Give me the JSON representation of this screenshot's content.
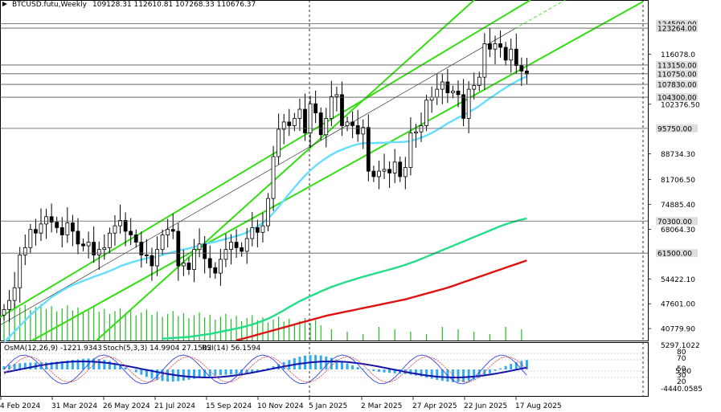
{
  "header": {
    "symbol": "BTCUSD.futu,Weekly",
    "ohlc": "109128.31 112610.81 107268.33 110676.37"
  },
  "indicator_header": {
    "osma": "OsMA(12,26,9) -1221.9343",
    "stoch": "Stoch(5,3,3) 14.9904 27.1502",
    "rsi": "RSI(14) 56.1594"
  },
  "colors": {
    "bull_candle": "#ffffff",
    "bear_candle": "#000000",
    "channel": "#33dd11",
    "ma_fast": "#66ddff",
    "ma_mid": "#22dd88",
    "ma_slow": "#dd1111",
    "volume": "#22bb22",
    "osma_hist": "#33aaee",
    "macd_line": "#1111aa",
    "stoch_main": "#3344dd",
    "stoch_signal": "#dd4444",
    "level_box": "#dddddd"
  },
  "chart_data": {
    "type": "candlestick",
    "title": "BTCUSD.futu,Weekly",
    "ylim": [
      37500,
      131000
    ],
    "price_axis_ticks": [
      116078.0,
      102376.5,
      95750,
      88734.3,
      81706.5,
      74885.4,
      68064.3,
      61500,
      54422.1,
      47601.0,
      40779.9
    ],
    "horizontal_levels": [
      {
        "label": "124500.00",
        "value": 124500
      },
      {
        "label": "123264.00",
        "value": 123264
      },
      {
        "label": "113150.00",
        "value": 113150
      },
      {
        "label": "110750.00",
        "value": 110750
      },
      {
        "label": "107830.00",
        "value": 107830
      },
      {
        "label": "104300.00",
        "value": 104300
      },
      {
        "label": "95750.00",
        "value": 95750
      },
      {
        "label": "70300.00",
        "value": 70300
      },
      {
        "label": "61500.00",
        "value": 61500
      }
    ],
    "axis_labels": [
      {
        "label": "116078.0",
        "value": 116078.0
      },
      {
        "label": "102376.50",
        "value": 102376.5
      },
      {
        "label": "88734.30",
        "value": 88734.3
      },
      {
        "label": "81706.50",
        "value": 81706.5
      },
      {
        "label": "74885.40",
        "value": 74885.4
      },
      {
        "label": "68064.30",
        "value": 68064.3
      },
      {
        "label": "54422.10",
        "value": 54422.1
      },
      {
        "label": "47601.00",
        "value": 47601.0
      },
      {
        "label": "40779.90",
        "value": 40779.9
      }
    ],
    "dates": [
      "4 Feb 2024",
      "31 Mar 2024",
      "26 May 2024",
      "21 Jul 2024",
      "15 Sep 2024",
      "10 Nov 2024",
      "5 Jan 2025",
      "2 Mar 2025",
      "27 Apr 2025",
      "22 Jun 2025",
      "17 Aug 2025"
    ],
    "close": [
      46000,
      48500,
      52000,
      61000,
      63000,
      68000,
      67000,
      69500,
      71500,
      70000,
      68500,
      66500,
      69800,
      67500,
      64000,
      63500,
      64500,
      61000,
      62500,
      63000,
      67000,
      69000,
      70500,
      67500,
      66500,
      64500,
      61000,
      60800,
      58000,
      62500,
      66500,
      68000,
      67500,
      58000,
      58800,
      57000,
      62500,
      64000,
      60000,
      57500,
      56000,
      59800,
      62500,
      64500,
      63000,
      62000,
      65500,
      68500,
      67200,
      69000,
      76500,
      88000,
      95500,
      97500,
      96500,
      98500,
      101000,
      94500,
      102500,
      100000,
      94000,
      98500,
      104500,
      105000,
      96500,
      97500,
      96500,
      94200,
      96000,
      84000,
      82500,
      84000,
      84500,
      83500,
      86500,
      82500,
      85000,
      94500,
      94800,
      96500,
      103500,
      104300,
      106500,
      108500,
      105500,
      106000,
      105000,
      98500,
      106500,
      107500,
      109800,
      119000,
      117500,
      119000,
      118000,
      114500,
      117500,
      113000,
      111500,
      110676
    ],
    "moving_averages": [
      {
        "name": "MA fast",
        "values": [
          37000,
          38500,
          40000,
          41500,
          43000,
          44500,
          45800,
          47000,
          48200,
          49400,
          50300,
          51200,
          52000,
          52700,
          53300,
          53900,
          54400,
          55000,
          55500,
          56000,
          56600,
          57200,
          57900,
          58400,
          58900,
          59300,
          59700,
          60100,
          60300,
          60500,
          61000,
          61400,
          61800,
          62200,
          62500,
          62800,
          63200,
          63600,
          64000,
          64300,
          64600,
          65000,
          65400,
          65800,
          66200,
          66600,
          67200,
          68000,
          68800,
          69800,
          71000,
          72500,
          74200,
          76000,
          77800,
          79500,
          81200,
          82800,
          84200,
          85500,
          86600,
          87600,
          88500,
          89300,
          89900,
          90500,
          91000,
          91400,
          91700,
          91700,
          91700,
          91800,
          91800,
          91900,
          92000,
          92000,
          92100,
          92300,
          92700,
          93200,
          93800,
          94500,
          95300,
          96200,
          97100,
          97900,
          98700,
          99400,
          100200,
          101000,
          101900,
          103000,
          104000,
          105000,
          106000,
          106900,
          107800,
          108600,
          109400,
          110000
        ]
      },
      {
        "name": "MA mid",
        "values": [
          null,
          null,
          null,
          null,
          null,
          null,
          null,
          null,
          null,
          null,
          null,
          null,
          null,
          null,
          null,
          null,
          null,
          null,
          null,
          null,
          null,
          null,
          null,
          null,
          null,
          null,
          null,
          null,
          null,
          null,
          38000,
          38100,
          38200,
          38300,
          38400,
          38500,
          38700,
          38900,
          39100,
          39300,
          39600,
          39900,
          40200,
          40500,
          40800,
          41100,
          41500,
          41900,
          42400,
          42900,
          43500,
          44200,
          45000,
          45800,
          46700,
          47500,
          48300,
          49000,
          49700,
          50300,
          51000,
          51600,
          52200,
          52700,
          53200,
          53700,
          54100,
          54600,
          55000,
          55400,
          55800,
          56200,
          56600,
          57000,
          57400,
          57800,
          58300,
          58800,
          59300,
          59900,
          60500,
          61100,
          61700,
          62300,
          62900,
          63500,
          64100,
          64700,
          65300,
          65900,
          66500,
          67100,
          67700,
          68300,
          68900,
          69400,
          69900,
          70300,
          70700,
          71000
        ]
      },
      {
        "name": "MA slow",
        "values": [
          null,
          null,
          null,
          null,
          null,
          null,
          null,
          null,
          null,
          null,
          null,
          null,
          null,
          null,
          null,
          null,
          null,
          null,
          null,
          null,
          null,
          null,
          null,
          null,
          null,
          null,
          null,
          null,
          null,
          null,
          null,
          null,
          null,
          null,
          null,
          null,
          null,
          null,
          null,
          null,
          null,
          null,
          null,
          null,
          37600,
          37900,
          38300,
          38700,
          39100,
          39500,
          39900,
          40300,
          40700,
          41100,
          41500,
          41900,
          42300,
          42700,
          43100,
          43500,
          43900,
          44300,
          44600,
          44900,
          45200,
          45500,
          45800,
          46100,
          46400,
          46700,
          47000,
          47300,
          47600,
          47900,
          48200,
          48500,
          48800,
          49200,
          49600,
          50000,
          50400,
          50800,
          51200,
          51600,
          52000,
          52500,
          53000,
          53500,
          54000,
          54500,
          55000,
          55500,
          56000,
          56500,
          57000,
          57500,
          58000,
          58500,
          59000,
          59500
        ]
      }
    ],
    "indicators": {
      "osma": -1221.9343,
      "stoch_main": 14.9904,
      "stoch_signal": 27.1502,
      "rsi": 56.1594,
      "axis_ticks": [
        "5297.1022",
        "80",
        "70",
        "50",
        "30",
        "20",
        "-4440.0585"
      ],
      "axis_extra": "5.00"
    }
  }
}
